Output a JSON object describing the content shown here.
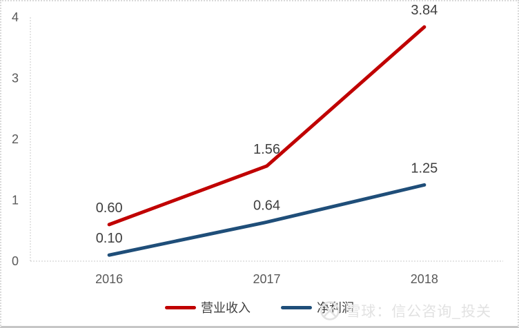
{
  "chart_data": {
    "type": "line",
    "categories": [
      "2016",
      "2017",
      "2018"
    ],
    "series": [
      {
        "name": "营业收入",
        "color": "#c00000",
        "values": [
          0.6,
          1.56,
          3.84
        ],
        "labels": [
          "0.60",
          "1.56",
          "3.84"
        ]
      },
      {
        "name": "净利润",
        "color": "#1f4e79",
        "values": [
          0.1,
          0.64,
          1.25
        ],
        "labels": [
          "0.10",
          "0.64",
          "1.25"
        ]
      }
    ],
    "title": "",
    "xlabel": "",
    "ylabel": "",
    "ylim": [
      0,
      4
    ],
    "yticks": [
      "0",
      "1",
      "2",
      "3",
      "4"
    ],
    "grid": false,
    "legend_position": "bottom"
  },
  "watermark": {
    "logo": "xueqiu-logo",
    "text": "雪球：信公咨询_投关"
  }
}
